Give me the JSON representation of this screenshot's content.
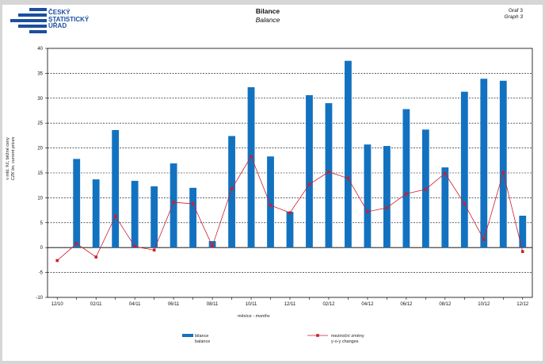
{
  "logo": {
    "line1": "ČESKÝ",
    "line2": "STATISTICKÝ",
    "line3": "ÚŘAD",
    "color": "#1b4fa0"
  },
  "header": {
    "title_cz": "Bilance",
    "title_en": "Balance",
    "graph_cz": "Graf 3",
    "graph_en": "Graph 3"
  },
  "colors": {
    "bar": "#1372c0",
    "line": "#cc1e2b",
    "page_bg": "#d6d6d6"
  },
  "chart_data": {
    "type": "bar",
    "title": "Bilance",
    "subtitle": "Balance",
    "ylabel_cz": "v mld. Kč, běžné ceny",
    "ylabel_en": "CZK bn, current prices",
    "xlabel_cz": "měsíce",
    "xlabel_en": "months",
    "ylim": [
      -10,
      40
    ],
    "yticks": [
      -10,
      -5,
      0,
      5,
      10,
      15,
      20,
      25,
      30,
      35,
      40
    ],
    "grid": true,
    "categories": [
      "12/10",
      "01/11",
      "02/11",
      "03/11",
      "04/11",
      "05/11",
      "06/11",
      "07/11",
      "08/11",
      "09/11",
      "10/11",
      "11/11",
      "12/11",
      "01/12",
      "02/12",
      "03/12",
      "04/12",
      "05/12",
      "06/12",
      "07/12",
      "08/12",
      "09/12",
      "10/12",
      "11/12",
      "12/12"
    ],
    "xtick_labels": [
      "12/10",
      "",
      "02/11",
      "",
      "04/11",
      "",
      "06/11",
      "",
      "08/11",
      "",
      "10/11",
      "",
      "12/11",
      "",
      "02/12",
      "",
      "04/12",
      "",
      "06/12",
      "",
      "08/12",
      "",
      "10/12",
      "",
      "12/12"
    ],
    "series": [
      {
        "name": "bilance",
        "name_en": "balance",
        "kind": "bar",
        "values": [
          0.0,
          17.8,
          13.7,
          23.6,
          13.4,
          12.3,
          16.9,
          12.0,
          1.3,
          22.4,
          32.2,
          18.3,
          7.2,
          30.6,
          29.0,
          37.5,
          20.7,
          20.4,
          27.8,
          23.7,
          16.1,
          31.3,
          33.9,
          33.5,
          6.4
        ]
      },
      {
        "name": "meziroční změny",
        "name_en": "y-o-y changes",
        "kind": "line",
        "values": [
          -2.6,
          0.8,
          -1.9,
          6.3,
          0.2,
          -0.5,
          9.1,
          8.8,
          0.3,
          11.8,
          18.3,
          8.5,
          7.0,
          12.7,
          15.2,
          13.9,
          7.2,
          8.0,
          10.8,
          11.7,
          14.9,
          8.8,
          1.6,
          15.1,
          -0.8
        ]
      }
    ],
    "legend_position": "bottom"
  }
}
